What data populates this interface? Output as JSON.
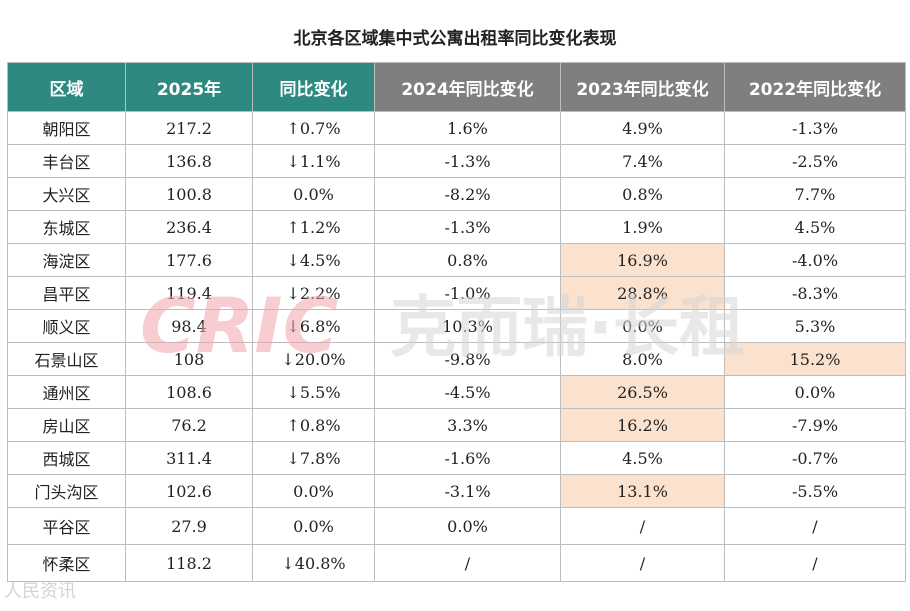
{
  "title": "北京各区域集中式公寓出租率同比变化表现",
  "headers": [
    "区域",
    "2025年",
    "同比变化",
    "2024年同比变化",
    "2023年同比变化",
    "2022年同比变化"
  ],
  "header_colors": {
    "teal": "#2e8a80",
    "grey": "#7f7f7f"
  },
  "status_colors": {
    "up": "#a3141d",
    "down": "#1e8a7a",
    "highlight": "#fbe2cf"
  },
  "rows": [
    {
      "district": "朝阳区",
      "v2025": "217.2",
      "yoy": "↑0.7%",
      "trend": "up",
      "y2024": "1.6%",
      "y2023": "4.9%",
      "y2022": "-1.3%"
    },
    {
      "district": "丰台区",
      "v2025": "136.8",
      "yoy": "↓1.1%",
      "trend": "down",
      "y2024": "-1.3%",
      "y2023": "7.4%",
      "y2022": "-2.5%"
    },
    {
      "district": "大兴区",
      "v2025": "100.8",
      "yoy": "0.0%",
      "trend": "flat",
      "y2024": "-8.2%",
      "y2023": "0.8%",
      "y2022": "7.7%"
    },
    {
      "district": "东城区",
      "v2025": "236.4",
      "yoy": "↑1.2%",
      "trend": "up",
      "y2024": "-1.3%",
      "y2023": "1.9%",
      "y2022": "4.5%"
    },
    {
      "district": "海淀区",
      "v2025": "177.6",
      "yoy": "↓4.5%",
      "trend": "down",
      "y2024": "0.8%",
      "y2023": "16.9%",
      "y2022": "-4.0%",
      "hl2023": true
    },
    {
      "district": "昌平区",
      "v2025": "119.4",
      "yoy": "↓2.2%",
      "trend": "down",
      "y2024": "-1.0%",
      "y2023": "28.8%",
      "y2022": "-8.3%",
      "hl2023": true
    },
    {
      "district": "顺义区",
      "v2025": "98.4",
      "yoy": "↓6.8%",
      "trend": "down",
      "y2024": "10.3%",
      "y2023": "0.0%",
      "y2022": "5.3%"
    },
    {
      "district": "石景山区",
      "v2025": "108",
      "yoy": "↓20.0%",
      "trend": "down",
      "y2024": "-9.8%",
      "y2023": "8.0%",
      "y2022": "15.2%",
      "hl2022": true
    },
    {
      "district": "通州区",
      "v2025": "108.6",
      "yoy": "↓5.5%",
      "trend": "down",
      "y2024": "-4.5%",
      "y2023": "26.5%",
      "y2022": "0.0%",
      "hl2023": true
    },
    {
      "district": "房山区",
      "v2025": "76.2",
      "yoy": "↑0.8%",
      "trend": "up",
      "y2024": "3.3%",
      "y2023": "16.2%",
      "y2022": "-7.9%",
      "hl2023": true
    },
    {
      "district": "西城区",
      "v2025": "311.4",
      "yoy": "↓7.8%",
      "trend": "down",
      "y2024": "-1.6%",
      "y2023": "4.5%",
      "y2022": "-0.7%"
    },
    {
      "district": "门头沟区",
      "v2025": "102.6",
      "yoy": "0.0%",
      "trend": "flat",
      "y2024": "-3.1%",
      "y2023": "13.1%",
      "y2022": "-5.5%",
      "hl2023": true
    },
    {
      "district": "平谷区",
      "v2025": "27.9",
      "yoy": "0.0%",
      "trend": "flat",
      "y2024": "0.0%",
      "y2023": "/",
      "y2022": "/"
    },
    {
      "district": "怀柔区",
      "v2025": "118.2",
      "yoy": "↓40.8%",
      "trend": "down",
      "y2024": "/",
      "y2023": "/",
      "y2022": "/"
    }
  ],
  "watermark": {
    "latin": "CRIC",
    "text": "克而瑞·长租"
  },
  "corner_mark": "人民资讯"
}
